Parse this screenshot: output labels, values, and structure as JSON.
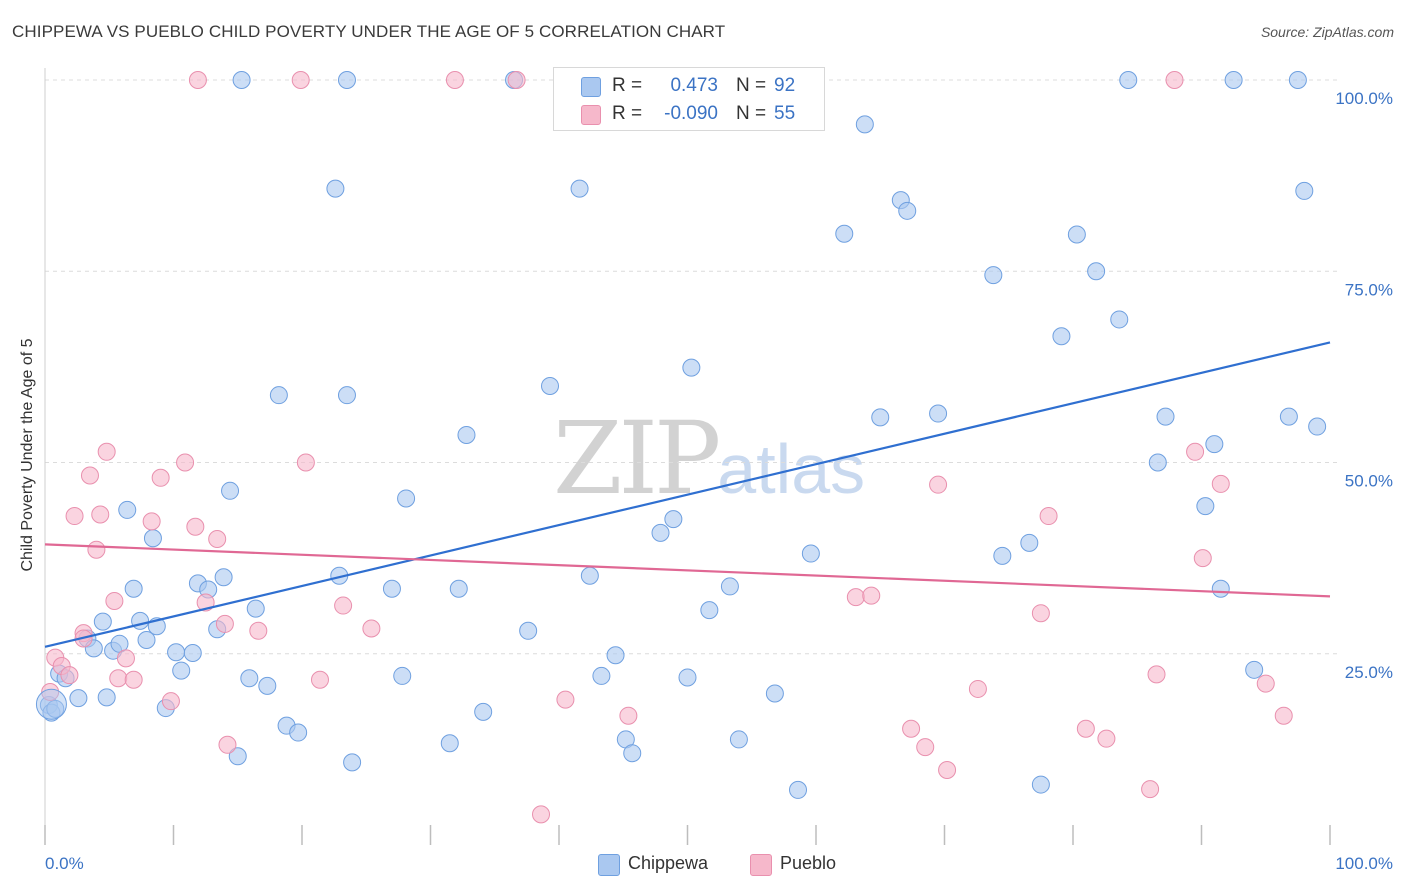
{
  "header": {
    "title": "CHIPPEWA VS PUEBLO CHILD POVERTY UNDER THE AGE OF 5 CORRELATION CHART",
    "source": "Source: ZipAtlas.com"
  },
  "watermark": {
    "zip": "ZIP",
    "atlas": "atlas"
  },
  "stats": {
    "rows": [
      {
        "r_label": "R =",
        "r_value": "0.473",
        "n_label": "N =",
        "n_value": "92",
        "color": "#aac8f0"
      },
      {
        "r_label": "R =",
        "r_value": "-0.090",
        "n_label": "N =",
        "n_value": "55",
        "color": "#f6b8cb"
      }
    ]
  },
  "legend": {
    "items": [
      {
        "label": "Chippewa",
        "color": "#aac8f0"
      },
      {
        "label": "Pueblo",
        "color": "#f6b8cb"
      }
    ]
  },
  "chart_data": {
    "type": "scatter",
    "title": "CHIPPEWA VS PUEBLO CHILD POVERTY UNDER THE AGE OF 5 CORRELATION CHART",
    "xlabel": "",
    "ylabel": "Child Poverty Under the Age of 5",
    "xlim": [
      0,
      100
    ],
    "ylim": [
      0,
      100
    ],
    "x_tick_labels": [
      "0.0%",
      "100.0%"
    ],
    "y_ticks": [
      25,
      50,
      75,
      100
    ],
    "y_tick_labels": [
      "25.0%",
      "50.0%",
      "75.0%",
      "100.0%"
    ],
    "grid": "horizontal dashed",
    "legend_position": "bottom-center",
    "series": [
      {
        "name": "Chippewa",
        "color": "#6fa0e0",
        "fill": "#aac8f0",
        "line_color": "#2f6fd0",
        "trend": [
          [
            0,
            25.9
          ],
          [
            100,
            65.7
          ]
        ],
        "points": [
          [
            0.3,
            18.3
          ],
          [
            0.5,
            17.3
          ],
          [
            0.8,
            17.8
          ],
          [
            1.1,
            22.4
          ],
          [
            1.6,
            21.8
          ],
          [
            2.6,
            19.2
          ],
          [
            3.3,
            27.0
          ],
          [
            3.8,
            25.7
          ],
          [
            4.5,
            29.2
          ],
          [
            4.8,
            19.3
          ],
          [
            5.3,
            25.4
          ],
          [
            5.8,
            26.3
          ],
          [
            6.4,
            43.8
          ],
          [
            6.9,
            33.5
          ],
          [
            7.4,
            29.3
          ],
          [
            7.9,
            26.8
          ],
          [
            8.4,
            40.1
          ],
          [
            8.7,
            28.6
          ],
          [
            9.4,
            17.9
          ],
          [
            10.2,
            25.2
          ],
          [
            10.6,
            22.8
          ],
          [
            11.5,
            25.1
          ],
          [
            11.9,
            34.2
          ],
          [
            12.7,
            33.4
          ],
          [
            13.4,
            28.2
          ],
          [
            13.9,
            35.0
          ],
          [
            14.4,
            46.3
          ],
          [
            15.9,
            21.8
          ],
          [
            16.4,
            30.9
          ],
          [
            17.3,
            20.8
          ],
          [
            15.0,
            11.6
          ],
          [
            18.2,
            58.8
          ],
          [
            18.8,
            15.6
          ],
          [
            19.7,
            14.7
          ],
          [
            22.6,
            85.8
          ],
          [
            22.9,
            35.2
          ],
          [
            23.5,
            58.8
          ],
          [
            23.9,
            10.8
          ],
          [
            27.0,
            33.5
          ],
          [
            27.8,
            22.1
          ],
          [
            28.1,
            45.3
          ],
          [
            31.5,
            13.3
          ],
          [
            32.2,
            33.5
          ],
          [
            32.8,
            53.6
          ],
          [
            34.1,
            17.4
          ],
          [
            37.6,
            28.0
          ],
          [
            39.3,
            60.0
          ],
          [
            41.6,
            85.8
          ],
          [
            42.4,
            35.2
          ],
          [
            43.3,
            22.1
          ],
          [
            44.4,
            24.8
          ],
          [
            45.2,
            13.8
          ],
          [
            45.7,
            12.0
          ],
          [
            47.9,
            40.8
          ],
          [
            48.9,
            42.6
          ],
          [
            50.0,
            21.9
          ],
          [
            50.3,
            62.4
          ],
          [
            51.7,
            30.7
          ],
          [
            53.3,
            33.8
          ],
          [
            54.0,
            13.8
          ],
          [
            56.8,
            19.8
          ],
          [
            58.6,
            7.2
          ],
          [
            59.6,
            38.1
          ],
          [
            62.2,
            79.9
          ],
          [
            63.8,
            94.2
          ],
          [
            65.0,
            55.9
          ],
          [
            66.6,
            84.3
          ],
          [
            67.1,
            82.9
          ],
          [
            69.5,
            56.4
          ],
          [
            73.8,
            74.5
          ],
          [
            74.5,
            37.8
          ],
          [
            76.6,
            39.5
          ],
          [
            77.5,
            7.9
          ],
          [
            79.1,
            66.5
          ],
          [
            80.3,
            79.8
          ],
          [
            81.8,
            75.0
          ],
          [
            83.6,
            68.7
          ],
          [
            86.6,
            50.0
          ],
          [
            87.2,
            56.0
          ],
          [
            90.3,
            44.3
          ],
          [
            91.0,
            52.4
          ],
          [
            91.5,
            33.5
          ],
          [
            94.1,
            22.9
          ],
          [
            96.8,
            56.0
          ],
          [
            98.0,
            85.5
          ],
          [
            99.0,
            54.7
          ],
          [
            15.3,
            100.0
          ],
          [
            23.5,
            100.0
          ],
          [
            36.5,
            100.0
          ],
          [
            84.3,
            100.0
          ],
          [
            92.5,
            100.0
          ],
          [
            97.5,
            100.0
          ]
        ]
      },
      {
        "name": "Pueblo",
        "color": "#e990ae",
        "fill": "#f6b8cb",
        "line_color": "#e06894",
        "trend": [
          [
            0,
            39.3
          ],
          [
            100,
            32.5
          ]
        ],
        "points": [
          [
            0.4,
            20.0
          ],
          [
            0.8,
            24.5
          ],
          [
            1.3,
            23.4
          ],
          [
            1.9,
            22.2
          ],
          [
            2.3,
            43.0
          ],
          [
            3.0,
            27.7
          ],
          [
            3.5,
            48.3
          ],
          [
            4.0,
            38.6
          ],
          [
            4.3,
            43.2
          ],
          [
            4.8,
            51.4
          ],
          [
            5.4,
            31.9
          ],
          [
            5.7,
            21.8
          ],
          [
            6.3,
            24.4
          ],
          [
            6.9,
            21.6
          ],
          [
            8.3,
            42.3
          ],
          [
            9.0,
            48.0
          ],
          [
            9.8,
            18.8
          ],
          [
            10.9,
            50.0
          ],
          [
            11.7,
            41.6
          ],
          [
            12.5,
            31.7
          ],
          [
            13.4,
            40.0
          ],
          [
            14.0,
            28.9
          ],
          [
            16.6,
            28.0
          ],
          [
            14.2,
            13.1
          ],
          [
            20.3,
            50.0
          ],
          [
            21.4,
            21.6
          ],
          [
            23.2,
            31.3
          ],
          [
            25.4,
            28.3
          ],
          [
            38.6,
            4.0
          ],
          [
            40.5,
            19.0
          ],
          [
            45.4,
            16.9
          ],
          [
            63.1,
            32.4
          ],
          [
            64.3,
            32.6
          ],
          [
            67.4,
            15.2
          ],
          [
            68.5,
            12.8
          ],
          [
            69.5,
            47.1
          ],
          [
            70.2,
            9.8
          ],
          [
            72.6,
            20.4
          ],
          [
            77.5,
            30.3
          ],
          [
            78.1,
            43.0
          ],
          [
            81.0,
            15.2
          ],
          [
            82.6,
            13.9
          ],
          [
            86.0,
            7.3
          ],
          [
            86.5,
            22.3
          ],
          [
            89.5,
            51.4
          ],
          [
            90.1,
            37.5
          ],
          [
            91.5,
            47.2
          ],
          [
            95.0,
            21.1
          ],
          [
            96.4,
            16.9
          ],
          [
            11.9,
            100.0
          ],
          [
            19.9,
            100.0
          ],
          [
            31.9,
            100.0
          ],
          [
            36.7,
            100.0
          ],
          [
            87.9,
            100.0
          ],
          [
            3.0,
            27.0
          ]
        ]
      }
    ]
  }
}
